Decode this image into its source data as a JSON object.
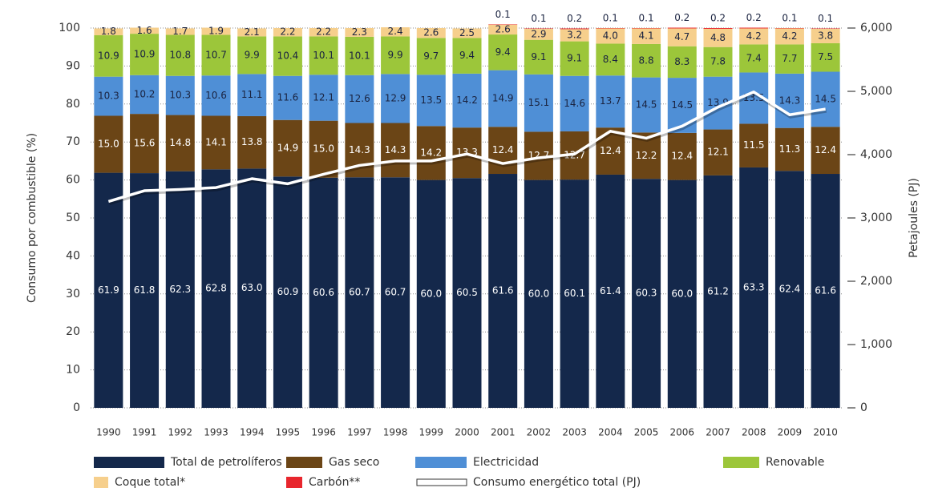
{
  "chart_data": {
    "type": "bar",
    "stacked": true,
    "y_label": "Consumo por combustible (%)",
    "y2_label": "Petajoules (PJ)",
    "categories": [
      "1990",
      "1991",
      "1992",
      "1993",
      "1994",
      "1995",
      "1996",
      "1997",
      "1998",
      "1999",
      "2000",
      "2001",
      "2002",
      "2003",
      "2004",
      "2005",
      "2006",
      "2007",
      "2008",
      "2009",
      "2010"
    ],
    "ylim": [
      0,
      100
    ],
    "yticks": [
      0,
      10,
      20,
      30,
      40,
      50,
      60,
      70,
      80,
      90,
      100
    ],
    "y2lim": [
      0,
      6000
    ],
    "y2ticks": [
      0,
      {
        "value": 1000,
        "label": "1,000"
      },
      {
        "value": 2000,
        "label": "2,000"
      },
      {
        "value": 3000,
        "label": "3,000"
      },
      {
        "value": 4000,
        "label": "4,000"
      },
      {
        "value": 5000,
        "label": "5,000"
      },
      {
        "value": 6000,
        "label": "6,000"
      }
    ],
    "grid": true,
    "series": [
      {
        "name": "Total de petrolíferos",
        "color": "#14284b",
        "label_color": "#ffffff",
        "values": [
          61.9,
          61.8,
          62.3,
          62.8,
          63.0,
          60.9,
          60.6,
          60.7,
          60.7,
          60.0,
          60.5,
          61.6,
          60.0,
          60.1,
          61.4,
          60.3,
          60.0,
          61.2,
          63.3,
          62.4,
          61.6
        ],
        "value_labels": [
          "61.9",
          "61.8",
          "62.3",
          "62.8",
          "63.0",
          "60.9",
          "60.6",
          "60.7",
          "60.7",
          "60.0",
          "60.5",
          "61.6",
          "60.0",
          "60.1",
          "61.4",
          "60.3",
          "60.0",
          "61.2",
          "63.3",
          "62.4",
          "61.6"
        ]
      },
      {
        "name": "Gas seco",
        "color": "#6b4516",
        "label_color": "#ffffff",
        "values": [
          15.0,
          15.6,
          14.8,
          14.1,
          13.8,
          14.9,
          15.0,
          14.3,
          14.3,
          14.2,
          13.3,
          12.4,
          12.7,
          12.7,
          12.4,
          12.2,
          12.4,
          12.1,
          11.5,
          11.3,
          12.4
        ],
        "value_labels": [
          "15.0",
          "15.6",
          "14.8",
          "14.1",
          "13.8",
          "14.9",
          "15.0",
          "14.3",
          "14.3",
          "14.2",
          "13.3",
          "12.4",
          "12.7",
          "12.7",
          "12.4",
          "12.2",
          "12.4",
          "12.1",
          "11.5",
          "11.3",
          "12.4"
        ]
      },
      {
        "name": "Electricidad",
        "color": "#4f8fd6",
        "label_color": "#1a2340",
        "values": [
          10.3,
          10.2,
          10.3,
          10.6,
          11.1,
          11.6,
          12.1,
          12.6,
          12.9,
          13.5,
          14.2,
          14.9,
          15.1,
          14.6,
          13.7,
          14.5,
          14.5,
          13.9,
          13.5,
          14.3,
          14.5
        ],
        "value_labels": [
          "10.3",
          "10.2",
          "10.3",
          "10.6",
          "11.1",
          "11.6",
          "12.1",
          "12.6",
          "12.9",
          "13.5",
          "14.2",
          "14.9",
          "15.1",
          "14.6",
          "13.7",
          "14.5",
          "14.5",
          "13.9",
          "13.5",
          "14.3",
          "14.5"
        ]
      },
      {
        "name": "Renovable",
        "color": "#9cc63a",
        "label_color": "#1a2340",
        "values": [
          10.9,
          10.9,
          10.8,
          10.7,
          9.9,
          10.4,
          10.1,
          10.1,
          9.9,
          9.7,
          9.4,
          9.4,
          9.1,
          9.1,
          8.4,
          8.8,
          8.3,
          7.8,
          7.4,
          7.7,
          7.5
        ],
        "value_labels": [
          "10.9",
          "10.9",
          "10.8",
          "10.7",
          "9.9",
          "10.4",
          "10.1",
          "10.1",
          "9.9",
          "9.7",
          "9.4",
          "9.4",
          "9.1",
          "9.1",
          "8.4",
          "8.8",
          "8.3",
          "7.8",
          "7.4",
          "7.7",
          "7.5"
        ]
      },
      {
        "name": "Coque total*",
        "color": "#f6cf8c",
        "label_color": "#1a2340",
        "values": [
          1.8,
          1.6,
          1.7,
          1.9,
          2.1,
          2.2,
          2.2,
          2.3,
          2.4,
          2.6,
          2.5,
          2.6,
          2.9,
          3.2,
          4.0,
          4.1,
          4.7,
          4.8,
          4.2,
          4.2,
          3.8
        ],
        "value_labels": [
          "1.8",
          "1.6",
          "1.7",
          "1.9",
          "2.1",
          "2.2",
          "2.2",
          "2.3",
          "2.4",
          "2.6",
          "2.5",
          "2.6",
          "2.9",
          "3.2",
          "4.0",
          "4.1",
          "4.7",
          "4.8",
          "4.2",
          "4.2",
          "3.8"
        ]
      },
      {
        "name": "Carbón**",
        "color": "#e8262d",
        "label_color": "#1a2340",
        "label_above": true,
        "values": [
          null,
          null,
          null,
          null,
          null,
          null,
          null,
          null,
          null,
          null,
          null,
          0.1,
          0.1,
          0.2,
          0.1,
          0.1,
          0.2,
          0.2,
          0.2,
          0.1,
          0.1
        ]
      },
      {
        "name": "Consumo energético total (PJ)",
        "type": "line",
        "axis": "y2",
        "color": "#ffffff",
        "values": [
          3260,
          3430,
          3450,
          3480,
          3620,
          3540,
          3690,
          3830,
          3900,
          3900,
          4010,
          3860,
          3950,
          4010,
          4370,
          4260,
          4450,
          4750,
          4990,
          4630,
          4720
        ]
      }
    ]
  }
}
